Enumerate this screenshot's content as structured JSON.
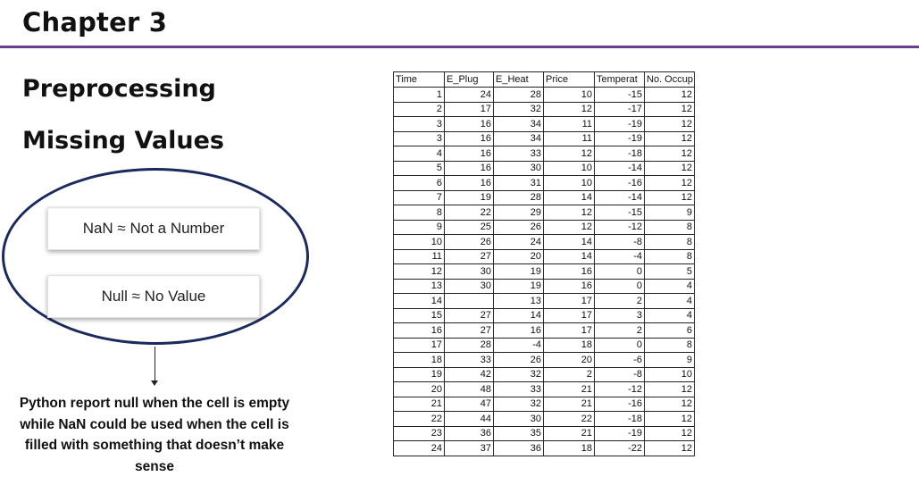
{
  "chapter": "Chapter 3",
  "headings": {
    "h1": "Preprocessing",
    "h2": "Missing Values"
  },
  "cards": {
    "nan": "NaN ≈ Not a Number",
    "null": "Null ≈ No Value"
  },
  "note": "Python report null when the cell is empty while NaN could be used when the cell is filled with something that doesn’t make sense",
  "colors": {
    "rule": "#6a3f8f",
    "ellipse": "#1b2a5c"
  },
  "table": {
    "columns": [
      "Time",
      "E_Plug",
      "E_Heat",
      "Price",
      "Temperat",
      "No. Occup"
    ],
    "rows": [
      [
        "1",
        "24",
        "28",
        "10",
        "-15",
        "12"
      ],
      [
        "2",
        "17",
        "32",
        "12",
        "-17",
        "12"
      ],
      [
        "3",
        "16",
        "34",
        "11",
        "-19",
        "12"
      ],
      [
        "3",
        "16",
        "34",
        "11",
        "-19",
        "12"
      ],
      [
        "4",
        "16",
        "33",
        "12",
        "-18",
        "12"
      ],
      [
        "5",
        "16",
        "30",
        "10",
        "-14",
        "12"
      ],
      [
        "6",
        "16",
        "31",
        "10",
        "-16",
        "12"
      ],
      [
        "7",
        "19",
        "28",
        "14",
        "-14",
        "12"
      ],
      [
        "8",
        "22",
        "29",
        "12",
        "-15",
        "9"
      ],
      [
        "9",
        "25",
        "26",
        "12",
        "-12",
        "8"
      ],
      [
        "10",
        "26",
        "24",
        "14",
        "-8",
        "8"
      ],
      [
        "11",
        "27",
        "20",
        "14",
        "-4",
        "8"
      ],
      [
        "12",
        "30",
        "19",
        "16",
        "0",
        "5"
      ],
      [
        "13",
        "30",
        "19",
        "16",
        "0",
        "4"
      ],
      [
        "14",
        "",
        "13",
        "17",
        "2",
        "4"
      ],
      [
        "15",
        "27",
        "14",
        "17",
        "3",
        "4"
      ],
      [
        "16",
        "27",
        "16",
        "17",
        "2",
        "6"
      ],
      [
        "17",
        "28",
        "-4",
        "18",
        "0",
        "8"
      ],
      [
        "18",
        "33",
        "26",
        "20",
        "-6",
        "9"
      ],
      [
        "19",
        "42",
        "32",
        "2",
        "-8",
        "10"
      ],
      [
        "20",
        "48",
        "33",
        "21",
        "-12",
        "12"
      ],
      [
        "21",
        "47",
        "32",
        "21",
        "-16",
        "12"
      ],
      [
        "22",
        "44",
        "30",
        "22",
        "-18",
        "12"
      ],
      [
        "23",
        "36",
        "35",
        "21",
        "-19",
        "12"
      ],
      [
        "24",
        "37",
        "36",
        "18",
        "-22",
        "12"
      ]
    ]
  }
}
